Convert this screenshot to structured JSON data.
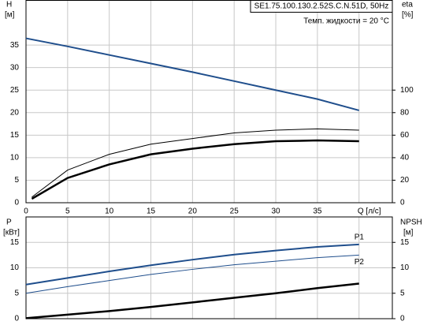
{
  "chart_data": [
    {
      "type": "line",
      "title": "SE1.75.100.130.2.52S.C.N.51D, 50Hz",
      "subtitle": "Темп. жидкости = 20 °C",
      "y_label": "H",
      "y_unit": "[м]",
      "y2_label": "eta",
      "y2_unit": "[%]",
      "xlim": [
        0,
        44
      ],
      "xticks": [
        0,
        5,
        10,
        15,
        20,
        25,
        30,
        35,
        {
          "value": 40,
          "label": "Q [л/с]"
        }
      ],
      "ylim": [
        0,
        45
      ],
      "yticks": [
        0,
        5,
        10,
        15,
        20,
        25,
        30,
        35
      ],
      "y2lim": [
        0,
        180
      ],
      "y2ticks": [
        0,
        20,
        40,
        60,
        80,
        100
      ],
      "grid": true,
      "series": [
        {
          "color": "#1f4e8c",
          "width": 2,
          "x": [
            0,
            5,
            10,
            15,
            20,
            25,
            30,
            35,
            40
          ],
          "values": [
            36.5,
            34.7,
            32.8,
            30.9,
            29.0,
            27.0,
            25.0,
            23.0,
            20.5
          ]
        },
        {
          "color": "#000000",
          "width": 1,
          "axis": "y2",
          "x": [
            0.7,
            5,
            10,
            15,
            20,
            25,
            30,
            35,
            40
          ],
          "values": [
            5,
            29,
            43,
            52,
            57,
            62,
            64.4,
            65.6,
            64.4
          ]
        },
        {
          "color": "#000000",
          "width": 2.5,
          "axis": "y2",
          "x": [
            0.7,
            5,
            10,
            15,
            20,
            25,
            30,
            35,
            40
          ],
          "values": [
            3.5,
            22,
            34,
            43,
            48,
            52,
            54.6,
            55.3,
            54.6
          ]
        }
      ]
    },
    {
      "type": "line",
      "y_label": "P",
      "y_unit": "[кВт]",
      "y2_label": "NPSH",
      "y2_unit": "[м]",
      "xlim": [
        0,
        44
      ],
      "ylim": [
        0,
        20
      ],
      "yticks": [
        0,
        5,
        10,
        15
      ],
      "y2lim": [
        0,
        20
      ],
      "y2ticks": [
        0,
        5,
        10,
        15
      ],
      "grid": true,
      "series": [
        {
          "name": "P1",
          "color": "#1f4e8c",
          "width": 2,
          "x": [
            0,
            5,
            10,
            15,
            20,
            25,
            30,
            35,
            40
          ],
          "values": [
            6.7,
            8.0,
            9.3,
            10.5,
            11.6,
            12.6,
            13.4,
            14.1,
            14.6
          ]
        },
        {
          "name": "P2",
          "color": "#1f4e8c",
          "width": 1,
          "x": [
            0,
            5,
            10,
            15,
            20,
            25,
            30,
            35,
            40
          ],
          "values": [
            5.0,
            6.3,
            7.5,
            8.7,
            9.7,
            10.6,
            11.3,
            12.0,
            12.5
          ]
        },
        {
          "color": "#000000",
          "width": 2.5,
          "axis": "y2",
          "x": [
            0,
            5,
            10,
            15,
            20,
            25,
            30,
            35,
            40
          ],
          "values": [
            0.1,
            0.8,
            1.5,
            2.3,
            3.2,
            4.1,
            5.0,
            6.0,
            6.9
          ]
        }
      ]
    }
  ]
}
